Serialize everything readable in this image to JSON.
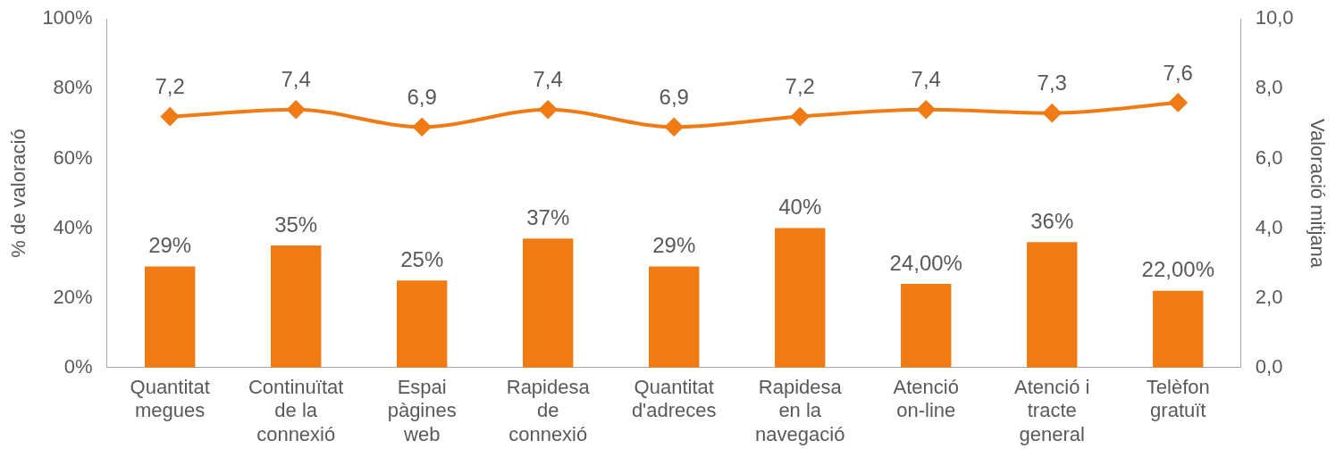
{
  "chart_data": {
    "type": "bar",
    "ylabel": "% de valoració",
    "y2label": "Valoració mitjana",
    "categories": [
      "Quantitat megues",
      "Continuïtat de la connexió",
      "Espai pàgines web",
      "Rapidesa de connexió",
      "Quantitat d'adreces",
      "Rapidesa en la navegació",
      "Atenció on-line",
      "Atenció i tracte general",
      "Telèfon gratuït"
    ],
    "series": [
      {
        "color": "#f07b15",
        "values": [
          29,
          35,
          25,
          37,
          29,
          40,
          24,
          36,
          22
        ],
        "value_labels": [
          "29%",
          "35%",
          "25%",
          "37%",
          "29%",
          "40%",
          "24,00%",
          "36%",
          "22,00%"
        ]
      },
      {
        "type": "line",
        "axis": "y2",
        "color": "#f07b15",
        "values": [
          7.2,
          7.4,
          6.9,
          7.4,
          6.9,
          7.2,
          7.4,
          7.3,
          7.6
        ],
        "value_labels": [
          "7,2",
          "7,4",
          "6,9",
          "7,4",
          "6,9",
          "7,2",
          "7,4",
          "7,3",
          "7,6"
        ]
      }
    ],
    "ylim": [
      0,
      100
    ],
    "yticks": [
      {
        "value": 0,
        "label": "0%"
      },
      {
        "value": 20,
        "label": "20%"
      },
      {
        "value": 40,
        "label": "40%"
      },
      {
        "value": 60,
        "label": "60%"
      },
      {
        "value": 80,
        "label": "80%"
      },
      {
        "value": 100,
        "label": "100%"
      }
    ],
    "y2lim": [
      0,
      10
    ],
    "y2ticks": [
      {
        "value": 0,
        "label": "0,0"
      },
      {
        "value": 2,
        "label": "2,0"
      },
      {
        "value": 4,
        "label": "4,0"
      },
      {
        "value": 6,
        "label": "6,0"
      },
      {
        "value": 8,
        "label": "8,0"
      },
      {
        "value": 10,
        "label": "10,0"
      }
    ],
    "grid": false,
    "legend": false,
    "marker": "diamond"
  }
}
